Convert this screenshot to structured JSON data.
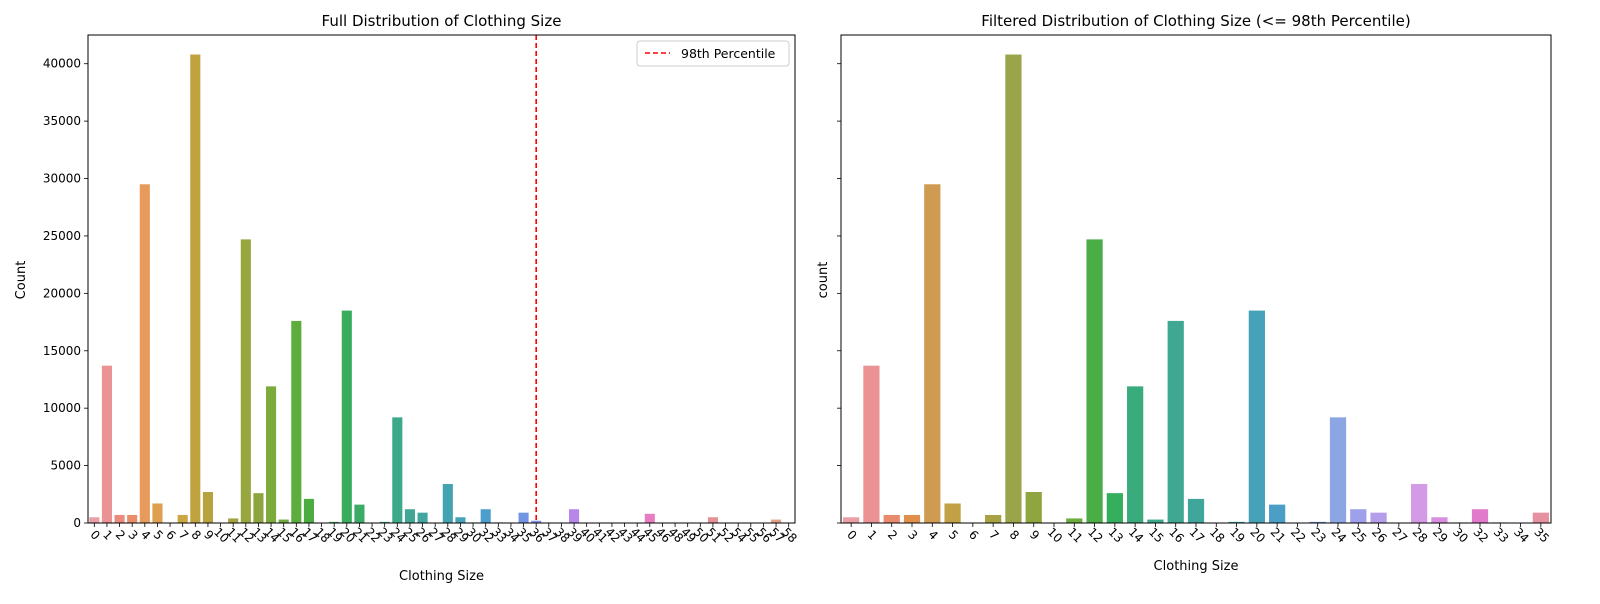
{
  "chart_data": [
    {
      "type": "bar",
      "title": "Full Distribution of Clothing Size",
      "xlabel": "Clothing Size",
      "ylabel": "Count",
      "ylim": [
        0,
        42500
      ],
      "yticks": [
        0,
        5000,
        10000,
        15000,
        20000,
        25000,
        30000,
        35000,
        40000
      ],
      "grid": false,
      "legend": {
        "placement": "top-right",
        "entries": [
          "98th Percentile"
        ]
      },
      "reference_line": {
        "label": "98th Percentile",
        "x_category": "36",
        "color": "#ff0000",
        "style": "dashed"
      },
      "categories": [
        "0",
        "1",
        "2",
        "3",
        "4",
        "5",
        "6",
        "7",
        "8",
        "9",
        "10",
        "11",
        "12",
        "13",
        "14",
        "15",
        "16",
        "17",
        "18",
        "19",
        "20",
        "21",
        "22",
        "23",
        "24",
        "25",
        "26",
        "27",
        "28",
        "29",
        "30",
        "32",
        "33",
        "34",
        "35",
        "36",
        "37",
        "38",
        "39",
        "40",
        "41",
        "42",
        "43",
        "44",
        "45",
        "46",
        "48",
        "49",
        "50",
        "51",
        "52",
        "54",
        "55",
        "56",
        "57",
        "58"
      ],
      "values": [
        500,
        13700,
        700,
        700,
        29500,
        1700,
        0,
        700,
        40800,
        2700,
        10,
        400,
        24700,
        2600,
        11900,
        300,
        17600,
        2100,
        30,
        100,
        18500,
        1600,
        30,
        100,
        9200,
        1200,
        900,
        30,
        3400,
        500,
        50,
        1200,
        50,
        30,
        900,
        200,
        30,
        30,
        1200,
        30,
        30,
        30,
        30,
        30,
        800,
        30,
        30,
        30,
        30,
        500,
        30,
        30,
        30,
        30,
        300,
        30
      ],
      "colors": [
        "#e8a0a4",
        "#ea9294",
        "#eb8a7f",
        "#ea8e6a",
        "#e79a5a",
        "#de9f4f",
        "#d4a448",
        "#cba744",
        "#c0a23e",
        "#b6a23f",
        "#ada343",
        "#a3a440",
        "#98a63e",
        "#8ca63d",
        "#7daa3d",
        "#6dab3e",
        "#5dac3e",
        "#4cac42",
        "#3cad48",
        "#34ae53",
        "#3aac5e",
        "#3cab68",
        "#3cab75",
        "#3ca980",
        "#3da88a",
        "#3fa794",
        "#40a69e",
        "#42a5a7",
        "#43a3b0",
        "#45a2b9",
        "#48a0c2",
        "#4d9ecc",
        "#569bd5",
        "#6398dc",
        "#7394e2",
        "#8590e7",
        "#978ce9",
        "#a988ea",
        "#b885e9",
        "#c582e6",
        "#d07fe2",
        "#d97cdc",
        "#e07ad4",
        "#e47acb",
        "#e77cc2",
        "#e87fb8",
        "#e884ae",
        "#e789a4",
        "#e68d9c",
        "#e59196",
        "#e49592",
        "#e3988e",
        "#e29b8c",
        "#e29e8a",
        "#e1a089",
        "#e1a289"
      ]
    },
    {
      "type": "bar",
      "title": "Filtered Distribution of Clothing Size (<= 98th Percentile)",
      "xlabel": "Clothing Size",
      "ylabel": "count",
      "ylim": [
        0,
        42500
      ],
      "grid": false,
      "categories": [
        "0",
        "1",
        "2",
        "3",
        "4",
        "5",
        "6",
        "7",
        "8",
        "9",
        "10",
        "11",
        "12",
        "13",
        "14",
        "15",
        "16",
        "17",
        "18",
        "19",
        "20",
        "21",
        "22",
        "23",
        "24",
        "25",
        "26",
        "27",
        "28",
        "29",
        "30",
        "32",
        "33",
        "34",
        "35"
      ],
      "values": [
        500,
        13700,
        700,
        700,
        29500,
        1700,
        0,
        700,
        40800,
        2700,
        10,
        400,
        24700,
        2600,
        11900,
        300,
        17600,
        2100,
        30,
        100,
        18500,
        1600,
        30,
        100,
        9200,
        1200,
        900,
        30,
        3400,
        500,
        50,
        1200,
        50,
        30,
        900
      ],
      "colors": [
        "#e8a0a4",
        "#ea9294",
        "#e98a6f",
        "#e08f4a",
        "#cf9a52",
        "#c1a046",
        "#b4a13f",
        "#a8a243",
        "#9aa449",
        "#8ea63d",
        "#7eab3d",
        "#6dac3e",
        "#4aad45",
        "#35ae5d",
        "#3aab7c",
        "#3ca98a",
        "#3fa792",
        "#40a69c",
        "#42a5a6",
        "#44a3b0",
        "#46a2b9",
        "#4b9fc6",
        "#5d9ad6",
        "#7696e0",
        "#8ca6e4",
        "#9ea1e9",
        "#b49de9",
        "#c69ae8",
        "#d39be5",
        "#d88fe0",
        "#de86d6",
        "#e17acb",
        "#e47ec0",
        "#e683b4",
        "#e691a0"
      ]
    }
  ]
}
